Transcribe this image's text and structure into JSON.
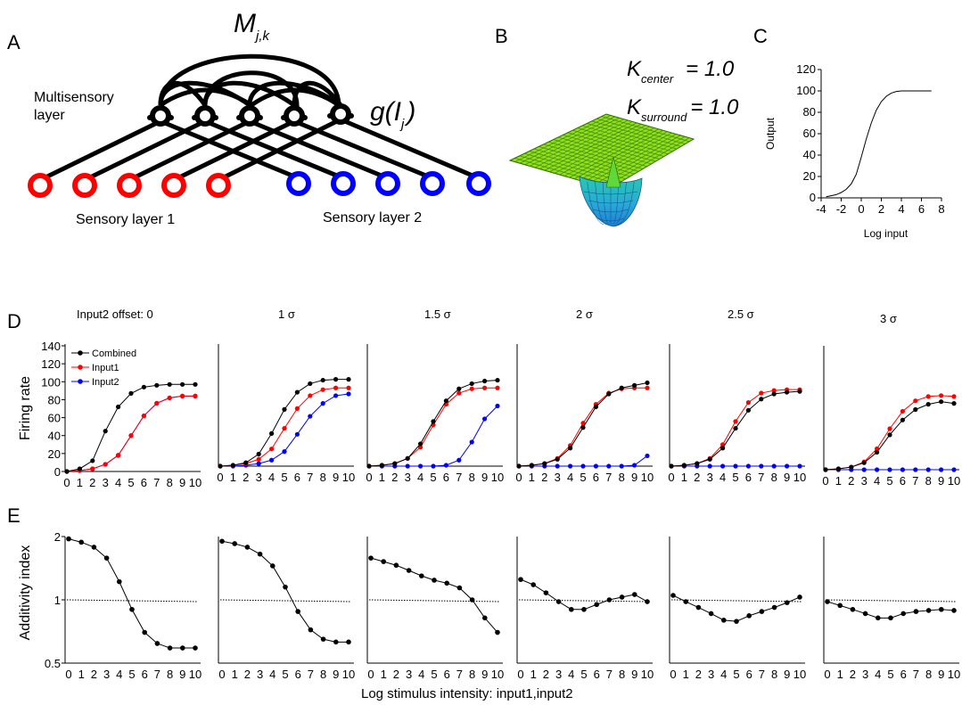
{
  "panel_letters": {
    "a": "A",
    "b": "B",
    "c": "C",
    "d": "D",
    "e": "E"
  },
  "panel_a": {
    "weight_label": "M",
    "weight_subscript": "j,k",
    "multisensory_label_line1": "Multisensory",
    "multisensory_label_line2": "layer",
    "activation_label_main": "g(I",
    "activation_label_sub": "j",
    "activation_label_close": ")",
    "sensory1_label": "Sensory layer 1",
    "sensory2_label": "Sensory layer 2",
    "colors": {
      "sensory1": "#ff0000",
      "sensory2": "#0000ff",
      "multisensory": "#000000"
    }
  },
  "panel_b": {
    "k_center_label": "K",
    "k_center_sub": "center",
    "k_center_value": "= 1.0",
    "k_surround_label": "K",
    "k_surround_sub": "surround",
    "k_surround_value": "= 1.0"
  },
  "chart_data": [
    {
      "id": "C",
      "type": "line",
      "xlabel": "Log input",
      "ylabel": "Output",
      "xlim": [
        -4,
        8
      ],
      "ylim": [
        0,
        120
      ],
      "xticks": [
        "-4",
        "-2",
        "0",
        "2",
        "4",
        "6",
        "8"
      ],
      "yticks": [
        "0",
        "20",
        "40",
        "60",
        "80",
        "100",
        "120"
      ],
      "series": [
        {
          "x": [
            -3.5,
            -3,
            -2.5,
            -2,
            -1.5,
            -1,
            -0.5,
            0,
            0.5,
            1,
            1.5,
            2,
            2.5,
            3,
            3.5,
            4,
            5,
            6,
            7
          ],
          "values": [
            1,
            2,
            3,
            5,
            8,
            13,
            22,
            38,
            55,
            70,
            82,
            90,
            95,
            98,
            99.5,
            100,
            100,
            100,
            100
          ]
        }
      ]
    },
    {
      "id": "D",
      "type": "line",
      "ylabel": "Firing rate",
      "x": [
        0,
        1,
        2,
        3,
        4,
        5,
        6,
        7,
        8,
        9,
        10
      ],
      "xticks": [
        "0",
        "1",
        "2",
        "3",
        "4",
        "5",
        "6",
        "7",
        "8",
        "9",
        "10"
      ],
      "yticks": [
        "0",
        "20",
        "40",
        "60",
        "80",
        "100",
        "120",
        "140"
      ],
      "ylim": [
        0,
        140
      ],
      "legend": [
        "Combined",
        "Input1",
        "Input2"
      ],
      "colors": {
        "combined": "#000000",
        "input1": "#ff0000",
        "input2": "#0000ff"
      },
      "subplots": [
        {
          "title": "Input2 offset: 0",
          "combined": [
            0,
            3,
            12,
            45,
            72,
            87,
            94,
            96,
            97,
            97,
            97
          ],
          "input1": [
            0,
            1,
            3,
            8,
            18,
            40,
            62,
            76,
            82,
            84,
            84
          ],
          "input2": [
            0,
            1,
            3,
            8,
            18,
            40,
            62,
            76,
            82,
            84,
            84
          ]
        },
        {
          "title": "1 σ",
          "combined": [
            0,
            1,
            4,
            14,
            38,
            66,
            86,
            96,
            100,
            101,
            101
          ],
          "input1": [
            0,
            1,
            3,
            8,
            20,
            44,
            67,
            82,
            89,
            91,
            91
          ],
          "input2": [
            0,
            0,
            1,
            3,
            7,
            17,
            37,
            58,
            73,
            82,
            84
          ]
        },
        {
          "title": "1.5 σ",
          "combined": [
            0,
            1,
            3,
            9,
            26,
            52,
            76,
            90,
            96,
            99,
            100
          ],
          "input1": [
            0,
            1,
            3,
            9,
            22,
            48,
            72,
            85,
            90,
            91,
            91
          ],
          "input2": [
            0,
            0,
            0,
            0,
            0,
            0,
            1,
            7,
            28,
            55,
            70
          ]
        },
        {
          "title": "2 σ",
          "combined": [
            0,
            1,
            3,
            8,
            21,
            45,
            69,
            84,
            91,
            94,
            97
          ],
          "input1": [
            0,
            1,
            3,
            9,
            24,
            50,
            72,
            85,
            90,
            91,
            91
          ],
          "input2": [
            0,
            0,
            0,
            0,
            0,
            0,
            0,
            0,
            0,
            1,
            12
          ]
        },
        {
          "title": "2.5 σ",
          "combined": [
            0,
            1,
            3,
            8,
            21,
            44,
            65,
            78,
            84,
            86,
            87
          ],
          "input1": [
            0,
            1,
            3,
            9,
            25,
            52,
            74,
            85,
            88,
            89,
            89
          ],
          "input2": [
            0,
            0,
            0,
            0,
            0,
            0,
            0,
            0,
            0,
            0,
            0
          ]
        },
        {
          "title": "3 σ",
          "combined": [
            0,
            1,
            3,
            8,
            20,
            40,
            57,
            69,
            75,
            78,
            76
          ],
          "input1": [
            0,
            1,
            3,
            9,
            24,
            47,
            67,
            79,
            84,
            85,
            84
          ],
          "input2": [
            0,
            0,
            0,
            0,
            0,
            0,
            0,
            0,
            0,
            0,
            0
          ]
        }
      ]
    },
    {
      "id": "E",
      "type": "line",
      "ylabel": "Additivity index",
      "xlabel": "Log stimulus intensity:  input1,input2",
      "x": [
        0,
        1,
        2,
        3,
        4,
        5,
        6,
        7,
        8,
        9,
        10
      ],
      "xticks": [
        "0",
        "1",
        "2",
        "3",
        "4",
        "5",
        "6",
        "7",
        "8",
        "9",
        "10"
      ],
      "yticks": [
        "0.5",
        "1",
        "2"
      ],
      "y_scale": "log",
      "ylim": [
        0.5,
        2
      ],
      "reference_line": 1,
      "subplots": [
        {
          "values": [
            1.95,
            1.88,
            1.78,
            1.58,
            1.22,
            0.9,
            0.7,
            0.62,
            0.59,
            0.59,
            0.59
          ]
        },
        {
          "values": [
            1.9,
            1.85,
            1.78,
            1.65,
            1.45,
            1.15,
            0.88,
            0.72,
            0.65,
            0.63,
            0.63
          ]
        },
        {
          "values": [
            1.58,
            1.52,
            1.46,
            1.38,
            1.3,
            1.24,
            1.2,
            1.14,
            1.0,
            0.82,
            0.7
          ]
        },
        {
          "values": [
            1.25,
            1.18,
            1.08,
            0.98,
            0.9,
            0.9,
            0.95,
            1.0,
            1.03,
            1.06,
            0.98
          ]
        },
        {
          "values": [
            1.05,
            0.98,
            0.92,
            0.86,
            0.8,
            0.79,
            0.84,
            0.88,
            0.92,
            0.97,
            1.03
          ]
        },
        {
          "values": [
            0.98,
            0.94,
            0.9,
            0.86,
            0.82,
            0.82,
            0.86,
            0.88,
            0.89,
            0.9,
            0.89
          ]
        }
      ]
    }
  ]
}
